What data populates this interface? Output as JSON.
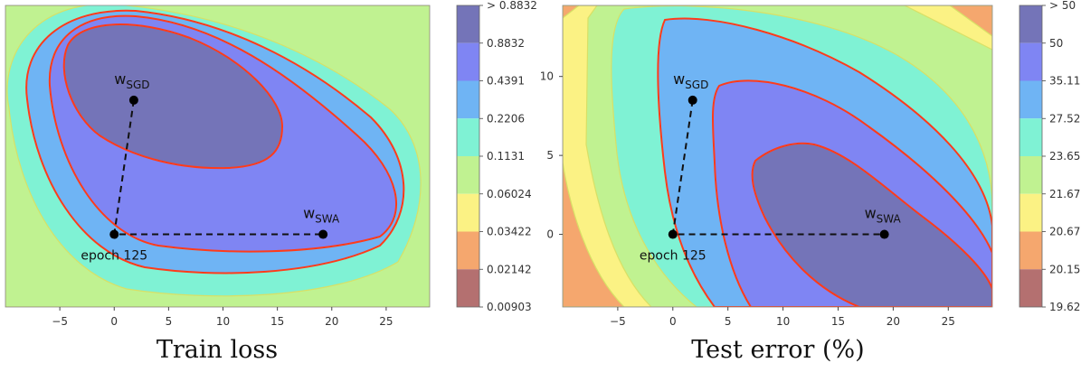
{
  "chart_data": [
    {
      "type": "heatmap",
      "title": "Train loss",
      "xlim": [
        -10,
        29
      ],
      "ylim": [
        -4.6,
        14.5
      ],
      "x_ticks": [
        -5,
        0,
        5,
        10,
        15,
        20,
        25
      ],
      "y_ticks": [],
      "colorbar": {
        "labels": [
          "> 0.8832",
          "0.8832",
          "0.4391",
          "0.2206",
          "0.1131",
          "0.06024",
          "0.03422",
          "0.02142",
          "0.00903"
        ],
        "colors": [
          "#7474b8",
          "#7f85f3",
          "#6fb4f4",
          "#7ff2d4",
          "#c0f291",
          "#fbf284",
          "#f5a76e",
          "#b47070"
        ]
      },
      "points": [
        {
          "main": "w",
          "sub": "SGD",
          "x": 1.8,
          "y": 8.5
        },
        {
          "main": "w",
          "sub": "SWA",
          "x": 19.2,
          "y": 0
        },
        {
          "label": "epoch 125",
          "x": 0,
          "y": 0
        }
      ],
      "dashed_path": [
        [
          1.8,
          8.5
        ],
        [
          0,
          0
        ],
        [
          19.2,
          0
        ]
      ]
    },
    {
      "type": "heatmap",
      "title": "Test error (%)",
      "xlim": [
        -10,
        29
      ],
      "ylim": [
        -4.6,
        14.5
      ],
      "x_ticks": [
        -5,
        0,
        5,
        10,
        15,
        20,
        25
      ],
      "y_ticks": [
        0,
        5,
        10
      ],
      "colorbar": {
        "labels": [
          "> 50",
          "50",
          "35.11",
          "27.52",
          "23.65",
          "21.67",
          "20.67",
          "20.15",
          "19.62"
        ],
        "colors": [
          "#7474b8",
          "#7f85f3",
          "#6fb4f4",
          "#7ff2d4",
          "#c0f291",
          "#fbf284",
          "#f5a76e",
          "#b47070"
        ]
      },
      "points": [
        {
          "main": "w",
          "sub": "SGD",
          "x": 1.8,
          "y": 8.5
        },
        {
          "main": "w",
          "sub": "SWA",
          "x": 19.2,
          "y": 0
        },
        {
          "label": "epoch 125",
          "x": 0,
          "y": 0
        }
      ],
      "dashed_path": [
        [
          1.8,
          8.5
        ],
        [
          0,
          0
        ],
        [
          19.2,
          0
        ]
      ]
    }
  ]
}
